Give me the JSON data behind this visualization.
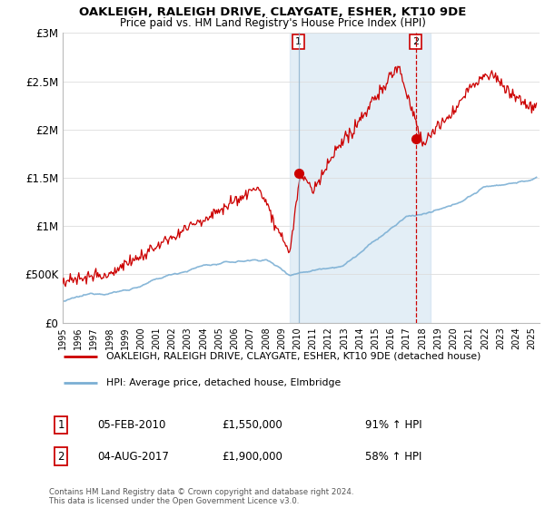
{
  "title": "OAKLEIGH, RALEIGH DRIVE, CLAYGATE, ESHER, KT10 9DE",
  "subtitle": "Price paid vs. HM Land Registry's House Price Index (HPI)",
  "ylim": [
    0,
    3000000
  ],
  "yticks": [
    0,
    500000,
    1000000,
    1500000,
    2000000,
    2500000,
    3000000
  ],
  "ytick_labels": [
    "£0",
    "£500K",
    "£1M",
    "£1.5M",
    "£2M",
    "£2.5M",
    "£3M"
  ],
  "hpi_color": "#7bafd4",
  "price_color": "#cc0000",
  "marker1_year": 2010.09,
  "marker1_value": 1550000,
  "marker1_date": "05-FEB-2010",
  "marker1_pct": "91% ↑ HPI",
  "marker2_year": 2017.58,
  "marker2_value": 1900000,
  "marker2_date": "04-AUG-2017",
  "marker2_pct": "58% ↑ HPI",
  "legend_line1": "OAKLEIGH, RALEIGH DRIVE, CLAYGATE, ESHER, KT10 9DE (detached house)",
  "legend_line2": "HPI: Average price, detached house, Elmbridge",
  "footer": "Contains HM Land Registry data © Crown copyright and database right 2024.\nThis data is licensed under the Open Government Licence v3.0.",
  "bg_shade_start": 2009.5,
  "bg_shade_end": 2018.5,
  "xmin": 1995.0,
  "xmax": 2025.5
}
